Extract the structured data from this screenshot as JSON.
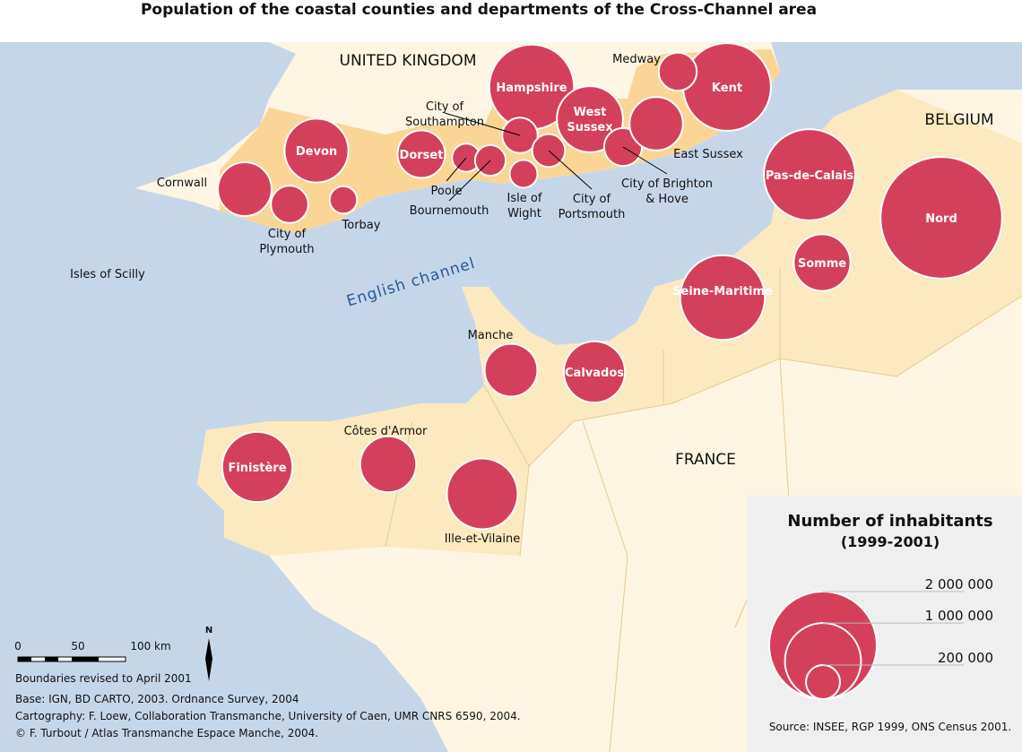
{
  "title": "Population of the coastal counties and departments of the Cross-Channel area",
  "places": {
    "uk": "UNITED KINGDOM",
    "belgium": "BELGIUM",
    "france": "FRANCE",
    "sea": "English channel",
    "scilly": "Isles of Scilly"
  },
  "regions": [
    {
      "name": "Hampshire",
      "population": 1240000
    },
    {
      "name": "Kent",
      "population": 1330000
    },
    {
      "name": "Devon",
      "population": 704000
    },
    {
      "name": "Cornwall",
      "population": 499000
    },
    {
      "name": "City of Plymouth",
      "population": 241000
    },
    {
      "name": "Torbay",
      "population": 130000
    },
    {
      "name": "Dorset",
      "population": 390000
    },
    {
      "name": "Poole",
      "population": 138000
    },
    {
      "name": "Bournemouth",
      "population": 163000
    },
    {
      "name": "City of Southampton",
      "population": 217000
    },
    {
      "name": "Isle of Wight",
      "population": 133000
    },
    {
      "name": "City of Portsmouth",
      "population": 187000
    },
    {
      "name": "West Sussex",
      "population": 754000
    },
    {
      "name": "City of Brighton & Hove",
      "population": 248000
    },
    {
      "name": "East Sussex",
      "population": 492000
    },
    {
      "name": "Medway",
      "population": 250000
    },
    {
      "name": "Pas-de-Calais",
      "population": 1441000
    },
    {
      "name": "Nord",
      "population": 2555000
    },
    {
      "name": "Somme",
      "population": 555000
    },
    {
      "name": "Seine-Maritime",
      "population": 1239000
    },
    {
      "name": "Calvados",
      "population": 648000
    },
    {
      "name": "Manche",
      "population": 481000
    },
    {
      "name": "Finistère",
      "population": 852000
    },
    {
      "name": "Côtes d'Armor",
      "population": 542000
    },
    {
      "name": "Ille-et-Vilaine",
      "population": 867000
    }
  ],
  "legend": {
    "title": "Number of inhabitants",
    "subtitle": "(1999-2001)",
    "sizes": [
      {
        "value": 2000000,
        "label": "2 000 000"
      },
      {
        "value": 1000000,
        "label": "1 000 000"
      },
      {
        "value": 200000,
        "label": "200 000"
      }
    ]
  },
  "scale": {
    "ticks": [
      "0",
      "50",
      "100 km"
    ],
    "north": "N"
  },
  "notes": {
    "boundaries": "Boundaries revised to April 2001",
    "base": "Base: IGN, BD CARTO, 2003. Ordnance Survey, 2004",
    "cartography": "Cartography: F. Loew, Collaboration Transmanche, University of Caen, UMR CNRS 6590, 2004.",
    "copyright": "© F. Turbout / Atlas Transmanche Espace Manche, 2004.",
    "source": "Source: INSEE, RGP 1999, ONS Census 2001."
  }
}
